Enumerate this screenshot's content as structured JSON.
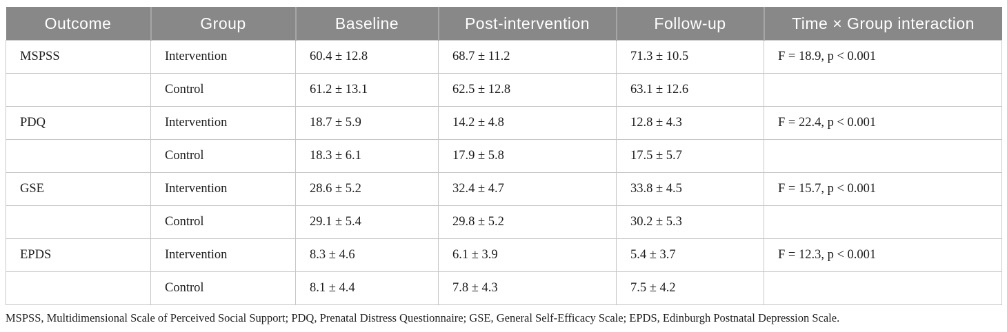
{
  "colors": {
    "header_bg": "#888888",
    "header_divider": "#a6a6a6",
    "header_text": "#ffffff",
    "body_border": "#c6c6c6",
    "body_text": "#1c1c1c"
  },
  "table": {
    "columns": [
      "Outcome",
      "Group",
      "Baseline",
      "Post-intervention",
      "Follow-up",
      "Time × Group interaction"
    ],
    "rows": [
      {
        "outcome": "MSPSS",
        "group": "Intervention",
        "baseline": "60.4 ± 12.8",
        "post": "68.7 ± 11.2",
        "followup": "71.3 ± 10.5",
        "interaction": "F = 18.9, p < 0.001"
      },
      {
        "outcome": "",
        "group": "Control",
        "baseline": "61.2 ± 13.1",
        "post": "62.5 ± 12.8",
        "followup": "63.1 ± 12.6",
        "interaction": ""
      },
      {
        "outcome": "PDQ",
        "group": "Intervention",
        "baseline": "18.7 ± 5.9",
        "post": "14.2 ± 4.8",
        "followup": "12.8 ± 4.3",
        "interaction": "F = 22.4, p < 0.001"
      },
      {
        "outcome": "",
        "group": "Control",
        "baseline": "18.3 ± 6.1",
        "post": "17.9 ± 5.8",
        "followup": "17.5 ± 5.7",
        "interaction": ""
      },
      {
        "outcome": "GSE",
        "group": "Intervention",
        "baseline": "28.6 ± 5.2",
        "post": "32.4 ± 4.7",
        "followup": "33.8 ± 4.5",
        "interaction": "F = 15.7, p < 0.001"
      },
      {
        "outcome": "",
        "group": "Control",
        "baseline": "29.1 ± 5.4",
        "post": "29.8 ± 5.2",
        "followup": "30.2 ± 5.3",
        "interaction": ""
      },
      {
        "outcome": "EPDS",
        "group": "Intervention",
        "baseline": "8.3 ± 4.6",
        "post": "6.1 ± 3.9",
        "followup": "5.4 ± 3.7",
        "interaction": "F = 12.3, p < 0.001"
      },
      {
        "outcome": "",
        "group": "Control",
        "baseline": "8.1 ± 4.4",
        "post": "7.8 ± 4.3",
        "followup": "7.5 ± 4.2",
        "interaction": ""
      }
    ],
    "footnote": "MSPSS, Multidimensional Scale of Perceived Social Support; PDQ, Prenatal Distress Questionnaire; GSE, General Self-Efficacy Scale; EPDS, Edinburgh Postnatal Depression Scale."
  },
  "chart_data": {
    "type": "table",
    "title": "",
    "columns": [
      "Outcome",
      "Group",
      "Baseline",
      "Post-intervention",
      "Follow-up",
      "Time × Group interaction"
    ],
    "series": [
      {
        "outcome": "MSPSS",
        "group": "Intervention",
        "baseline_mean": 60.4,
        "baseline_sd": 12.8,
        "post_mean": 68.7,
        "post_sd": 11.2,
        "followup_mean": 71.3,
        "followup_sd": 10.5,
        "F": 18.9,
        "p": "< 0.001"
      },
      {
        "outcome": "MSPSS",
        "group": "Control",
        "baseline_mean": 61.2,
        "baseline_sd": 13.1,
        "post_mean": 62.5,
        "post_sd": 12.8,
        "followup_mean": 63.1,
        "followup_sd": 12.6
      },
      {
        "outcome": "PDQ",
        "group": "Intervention",
        "baseline_mean": 18.7,
        "baseline_sd": 5.9,
        "post_mean": 14.2,
        "post_sd": 4.8,
        "followup_mean": 12.8,
        "followup_sd": 4.3,
        "F": 22.4,
        "p": "< 0.001"
      },
      {
        "outcome": "PDQ",
        "group": "Control",
        "baseline_mean": 18.3,
        "baseline_sd": 6.1,
        "post_mean": 17.9,
        "post_sd": 5.8,
        "followup_mean": 17.5,
        "followup_sd": 5.7
      },
      {
        "outcome": "GSE",
        "group": "Intervention",
        "baseline_mean": 28.6,
        "baseline_sd": 5.2,
        "post_mean": 32.4,
        "post_sd": 4.7,
        "followup_mean": 33.8,
        "followup_sd": 4.5,
        "F": 15.7,
        "p": "< 0.001"
      },
      {
        "outcome": "GSE",
        "group": "Control",
        "baseline_mean": 29.1,
        "baseline_sd": 5.4,
        "post_mean": 29.8,
        "post_sd": 5.2,
        "followup_mean": 30.2,
        "followup_sd": 5.3
      },
      {
        "outcome": "EPDS",
        "group": "Intervention",
        "baseline_mean": 8.3,
        "baseline_sd": 4.6,
        "post_mean": 6.1,
        "post_sd": 3.9,
        "followup_mean": 5.4,
        "followup_sd": 3.7,
        "F": 12.3,
        "p": "< 0.001"
      },
      {
        "outcome": "EPDS",
        "group": "Control",
        "baseline_mean": 8.1,
        "baseline_sd": 4.4,
        "post_mean": 7.8,
        "post_sd": 4.3,
        "followup_mean": 7.5,
        "followup_sd": 4.2
      }
    ]
  }
}
